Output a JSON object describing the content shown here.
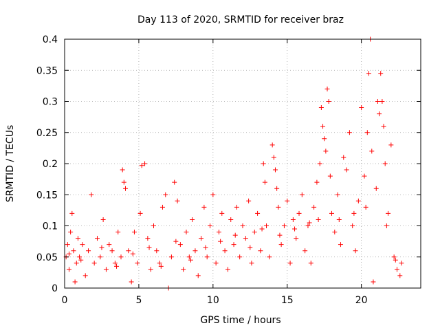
{
  "chart_data": {
    "type": "scatter",
    "title": "Day 113 of 2020, SRMTID for receiver braz",
    "xlabel": "GPS time / hours",
    "ylabel": "SRMTID / TECUs",
    "xlim": [
      0,
      24
    ],
    "ylim": [
      0,
      0.4
    ],
    "xticks": [
      0,
      5,
      10,
      15,
      20
    ],
    "yticks": [
      0,
      0.05,
      0.1,
      0.15,
      0.2,
      0.25,
      0.3,
      0.35,
      0.4
    ],
    "xtick_labels": [
      "0",
      "5",
      "10",
      "15",
      "20"
    ],
    "ytick_labels": [
      "0",
      "0.05",
      "0.1",
      "0.15",
      "0.2",
      "0.25",
      "0.3",
      "0.35",
      "0.4"
    ],
    "grid": true,
    "marker": "plus",
    "marker_color": "#ff0000",
    "series": [
      {
        "name": "SRMTID",
        "points": [
          [
            0.1,
            0.05
          ],
          [
            0.2,
            0.07
          ],
          [
            0.3,
            0.03
          ],
          [
            0.4,
            0.09
          ],
          [
            0.5,
            0.12
          ],
          [
            0.6,
            0.06
          ],
          [
            0.7,
            0.01
          ],
          [
            0.8,
            0.04
          ],
          [
            0.9,
            0.08
          ],
          [
            1.0,
            0.05
          ],
          [
            1.2,
            0.07
          ],
          [
            1.4,
            0.02
          ],
          [
            1.6,
            0.06
          ],
          [
            1.8,
            0.15
          ],
          [
            2.0,
            0.04
          ],
          [
            2.2,
            0.08
          ],
          [
            2.4,
            0.05
          ],
          [
            2.6,
            0.11
          ],
          [
            2.8,
            0.03
          ],
          [
            3.0,
            0.07
          ],
          [
            3.2,
            0.06
          ],
          [
            3.4,
            0.04
          ],
          [
            3.6,
            0.09
          ],
          [
            3.8,
            0.05
          ],
          [
            3.9,
            0.19
          ],
          [
            4.0,
            0.17
          ],
          [
            4.1,
            0.16
          ],
          [
            4.3,
            0.06
          ],
          [
            4.5,
            0.01
          ],
          [
            4.7,
            0.09
          ],
          [
            4.9,
            0.04
          ],
          [
            5.1,
            0.12
          ],
          [
            5.2,
            0.197
          ],
          [
            5.4,
            0.2
          ],
          [
            5.6,
            0.08
          ],
          [
            5.8,
            0.03
          ],
          [
            6.0,
            0.1
          ],
          [
            6.2,
            0.06
          ],
          [
            6.4,
            0.04
          ],
          [
            6.6,
            0.13
          ],
          [
            6.8,
            0.15
          ],
          [
            7.0,
            0.0
          ],
          [
            7.2,
            0.05
          ],
          [
            7.4,
            0.17
          ],
          [
            7.6,
            0.14
          ],
          [
            7.8,
            0.07
          ],
          [
            8.0,
            0.03
          ],
          [
            8.2,
            0.09
          ],
          [
            8.4,
            0.05
          ],
          [
            8.6,
            0.11
          ],
          [
            8.8,
            0.06
          ],
          [
            9.0,
            0.02
          ],
          [
            9.2,
            0.08
          ],
          [
            9.4,
            0.13
          ],
          [
            9.6,
            0.05
          ],
          [
            9.8,
            0.1
          ],
          [
            10.0,
            0.15
          ],
          [
            10.2,
            0.04
          ],
          [
            10.4,
            0.09
          ],
          [
            10.6,
            0.12
          ],
          [
            10.8,
            0.06
          ],
          [
            11.0,
            0.03
          ],
          [
            11.2,
            0.11
          ],
          [
            11.4,
            0.07
          ],
          [
            11.6,
            0.13
          ],
          [
            11.8,
            0.05
          ],
          [
            12.0,
            0.1
          ],
          [
            12.2,
            0.08
          ],
          [
            12.4,
            0.14
          ],
          [
            12.6,
            0.04
          ],
          [
            12.8,
            0.09
          ],
          [
            13.0,
            0.12
          ],
          [
            13.2,
            0.06
          ],
          [
            13.4,
            0.2
          ],
          [
            13.5,
            0.17
          ],
          [
            13.6,
            0.1
          ],
          [
            13.8,
            0.05
          ],
          [
            14.0,
            0.23
          ],
          [
            14.1,
            0.21
          ],
          [
            14.2,
            0.19
          ],
          [
            14.3,
            0.16
          ],
          [
            14.4,
            0.13
          ],
          [
            14.6,
            0.07
          ],
          [
            14.8,
            0.1
          ],
          [
            15.0,
            0.14
          ],
          [
            15.2,
            0.04
          ],
          [
            15.4,
            0.11
          ],
          [
            15.6,
            0.08
          ],
          [
            15.8,
            0.12
          ],
          [
            16.0,
            0.15
          ],
          [
            16.2,
            0.06
          ],
          [
            16.4,
            0.1
          ],
          [
            16.6,
            0.04
          ],
          [
            16.8,
            0.13
          ],
          [
            17.0,
            0.17
          ],
          [
            17.2,
            0.2
          ],
          [
            17.3,
            0.29
          ],
          [
            17.4,
            0.26
          ],
          [
            17.5,
            0.24
          ],
          [
            17.6,
            0.22
          ],
          [
            17.7,
            0.32
          ],
          [
            17.8,
            0.3
          ],
          [
            17.9,
            0.18
          ],
          [
            18.0,
            0.12
          ],
          [
            18.2,
            0.09
          ],
          [
            18.4,
            0.15
          ],
          [
            18.6,
            0.07
          ],
          [
            18.8,
            0.21
          ],
          [
            19.0,
            0.19
          ],
          [
            19.2,
            0.25
          ],
          [
            19.4,
            0.1
          ],
          [
            19.6,
            0.06
          ],
          [
            19.8,
            0.14
          ],
          [
            20.0,
            0.29
          ],
          [
            20.2,
            0.18
          ],
          [
            20.4,
            0.25
          ],
          [
            20.5,
            0.345
          ],
          [
            20.6,
            0.4
          ],
          [
            20.7,
            0.22
          ],
          [
            20.8,
            0.01
          ],
          [
            21.0,
            0.16
          ],
          [
            21.1,
            0.3
          ],
          [
            21.2,
            0.28
          ],
          [
            21.3,
            0.345
          ],
          [
            21.4,
            0.3
          ],
          [
            21.5,
            0.26
          ],
          [
            21.6,
            0.2
          ],
          [
            21.8,
            0.12
          ],
          [
            22.0,
            0.23
          ],
          [
            22.2,
            0.05
          ],
          [
            22.4,
            0.03
          ],
          [
            22.6,
            0.02
          ],
          [
            22.7,
            0.04
          ],
          [
            0.3,
            0.055
          ],
          [
            1.1,
            0.045
          ],
          [
            2.5,
            0.065
          ],
          [
            3.5,
            0.035
          ],
          [
            4.6,
            0.055
          ],
          [
            5.7,
            0.065
          ],
          [
            6.5,
            0.035
          ],
          [
            7.5,
            0.075
          ],
          [
            8.5,
            0.045
          ],
          [
            9.5,
            0.065
          ],
          [
            10.5,
            0.075
          ],
          [
            11.5,
            0.085
          ],
          [
            12.5,
            0.065
          ],
          [
            13.3,
            0.095
          ],
          [
            14.5,
            0.085
          ],
          [
            15.5,
            0.095
          ],
          [
            16.5,
            0.105
          ],
          [
            17.1,
            0.11
          ],
          [
            18.5,
            0.11
          ],
          [
            19.5,
            0.12
          ],
          [
            20.3,
            0.13
          ],
          [
            21.7,
            0.1
          ],
          [
            22.3,
            0.045
          ]
        ]
      }
    ]
  }
}
